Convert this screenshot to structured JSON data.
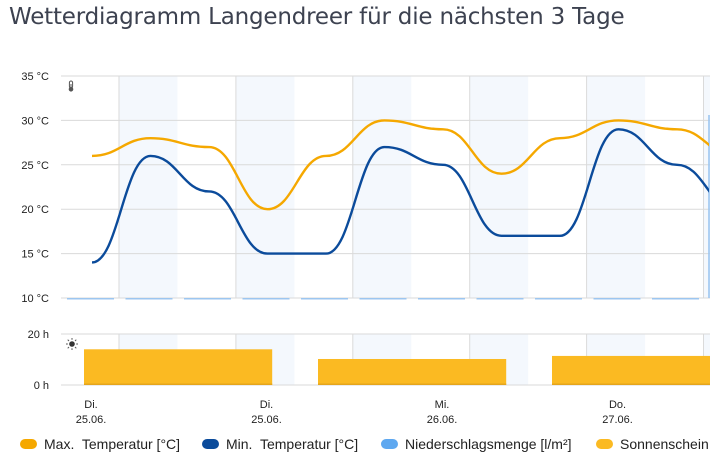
{
  "title": "Wetterdiagramm Langendreer für die nächsten 3 Tage",
  "colors": {
    "max_temp": "#F5A800",
    "min_temp": "#0B4B9B",
    "precip": "#9CC6F0",
    "sunshine": "#FBBA22",
    "shade": "#F4F8FD",
    "grid": "#DADADA"
  },
  "icons": {
    "temperature": "thermometer-icon",
    "sunshine": "sun-icon"
  },
  "chart_data": {
    "type": "line",
    "title": "Wetterdiagramm Langendreer für die nächsten 3 Tage",
    "x_unit": "6-hour intervals",
    "x": [
      0,
      1,
      2,
      3,
      4,
      5,
      6,
      7,
      8,
      9,
      10,
      11
    ],
    "x_tick_labels": [
      {
        "index": 0,
        "day": "Di.",
        "date": "25.06."
      },
      {
        "index": 3,
        "day": "Di.",
        "date": "25.06."
      },
      {
        "index": 6,
        "day": "Mi.",
        "date": "26.06."
      },
      {
        "index": 9,
        "day": "Do.",
        "date": "27.06."
      }
    ],
    "temperature_panel": {
      "ylim": [
        10,
        35
      ],
      "yticks": [
        10,
        15,
        20,
        25,
        30,
        35
      ],
      "ytick_labels": [
        "10 °C",
        "15 °C",
        "20 °C",
        "25 °C",
        "30 °C",
        "35 °C"
      ],
      "series": [
        {
          "name": "Max. Temperatur [°C]",
          "key": "max_temp",
          "values": [
            26,
            28,
            27,
            20,
            26,
            30,
            29,
            24,
            28,
            30,
            29,
            26
          ]
        },
        {
          "name": "Min. Temperatur [°C]",
          "key": "min_temp",
          "values": [
            14,
            26,
            22,
            15,
            15,
            27,
            25,
            17,
            17,
            29,
            25,
            20
          ]
        },
        {
          "name": "Niederschlagsmenge [l/m²]",
          "key": "precip",
          "values": [
            0,
            0,
            0,
            0,
            0,
            0,
            0,
            0,
            0,
            0,
            0,
            0
          ]
        }
      ]
    },
    "sunshine_panel": {
      "type": "bar",
      "ylim": [
        0,
        20
      ],
      "yticks": [
        0,
        20
      ],
      "ytick_labels": [
        "0 h",
        "20 h"
      ],
      "series": [
        {
          "name": "Sonnenschein [h]",
          "key": "sunshine",
          "bars": [
            {
              "start_index": 0,
              "span": 3.2,
              "value": 14
            },
            {
              "start_index": 4,
              "span": 3.2,
              "value": 10.2
            },
            {
              "start_index": 8,
              "span": 3.2,
              "value": 11.4
            }
          ]
        }
      ]
    }
  },
  "legend": [
    {
      "label": "Max.  Temperatur [°C]",
      "key": "max_temp"
    },
    {
      "label": "Min.  Temperatur [°C]",
      "key": "min_temp"
    },
    {
      "label": "Niederschlagsmenge [l/m²]",
      "key": "precip_legend"
    },
    {
      "label": "Sonnenschein [",
      "key": "sunshine"
    }
  ],
  "legend_colors": {
    "max_temp": "#F5A800",
    "min_temp": "#0B4B9B",
    "precip_legend": "#5EA8F0",
    "sunshine": "#FBBA22"
  }
}
